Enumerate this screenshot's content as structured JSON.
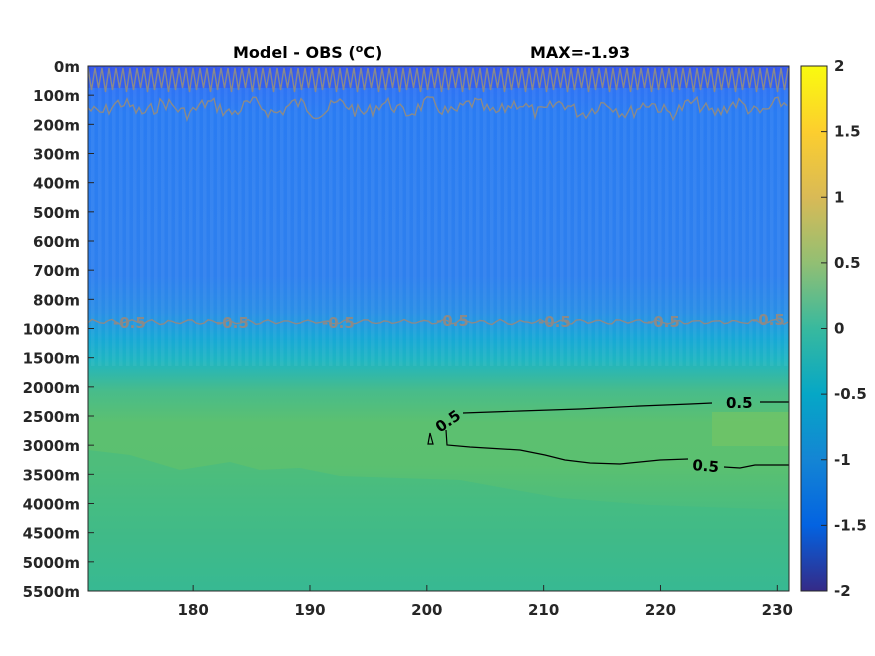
{
  "chart_data": {
    "type": "heatmap",
    "title": "Model - OBS (",
    "title_unit_sup": "o",
    "title_unit_end": "C)",
    "max_label": "MAX=-1.93",
    "x": {
      "ticks": [
        180,
        190,
        200,
        210,
        220,
        230
      ],
      "range": [
        171,
        231
      ]
    },
    "y": {
      "tick_labels": [
        "0m",
        "100m",
        "200m",
        "300m",
        "400m",
        "500m",
        "600m",
        "700m",
        "800m",
        "1000m",
        "1500m",
        "2000m",
        "2500m",
        "3000m",
        "3500m",
        "4000m",
        "4500m",
        "5000m",
        "5500m"
      ],
      "reversed": true
    },
    "colorbar": {
      "ticks": [
        "2",
        "1.5",
        "1",
        "0.5",
        "0",
        "-0.5",
        "-1",
        "-1.5",
        "-2"
      ],
      "range": [
        -2,
        2
      ],
      "colormap": "parula"
    },
    "depth_bands": [
      {
        "depth": "0m",
        "value": -1.3
      },
      {
        "depth": "100m",
        "value": -1.0
      },
      {
        "depth": "200m",
        "value": -0.95
      },
      {
        "depth": "500m",
        "value": -0.9
      },
      {
        "depth": "800m",
        "value": -0.8
      },
      {
        "depth": "1000m",
        "value": -0.5
      },
      {
        "depth": "1500m",
        "value": 0.0
      },
      {
        "depth": "2000m",
        "value": 0.4
      },
      {
        "depth": "2500m",
        "value": 0.48
      },
      {
        "depth": "3000m",
        "value": 0.48
      },
      {
        "depth": "3500m",
        "value": 0.4
      },
      {
        "depth": "4000m",
        "value": 0.35
      },
      {
        "depth": "5000m",
        "value": 0.3
      },
      {
        "depth": "5500m",
        "value": 0.28
      }
    ],
    "contour_labels": {
      "gray": [
        "-0.5",
        "-0.5",
        "-0.5",
        "-0.5",
        "-0.5",
        "-0.5",
        "-0.5"
      ],
      "black": [
        "0.5",
        "0.5",
        "0.5"
      ]
    },
    "grid": false
  }
}
